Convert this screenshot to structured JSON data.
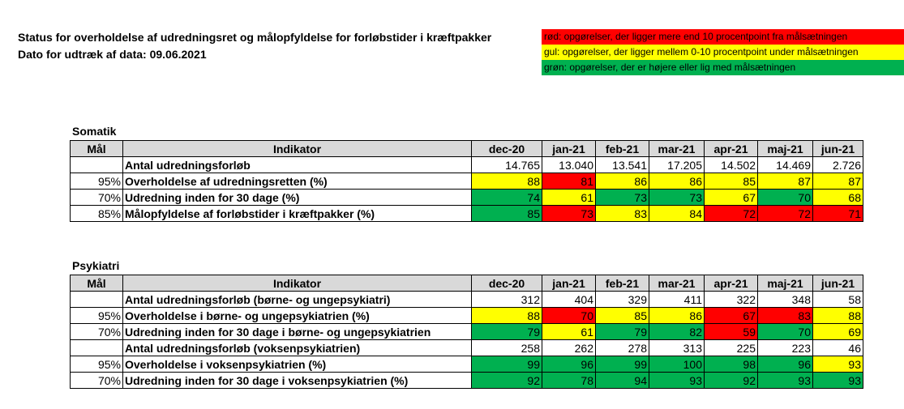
{
  "header": {
    "title": "Status for overholdelse af udredningsret og målopfyldelse for forløbstider i kræftpakker",
    "date_line": "Dato for udtræk af data: 09.06.2021"
  },
  "legend": [
    {
      "text": "rød: opgørelser, der ligger mere end 10 procentpoint fra målsætningen",
      "color": "#ff0000"
    },
    {
      "text": "gul: opgørelser, der ligger mellem 0-10 procentpoint under målsætningen",
      "color": "#ffff00"
    },
    {
      "text": "grøn: opgørelser, der er højere eller lig med målsætningen",
      "color": "#00b050"
    }
  ],
  "columns": {
    "goal": "Mål",
    "indicator": "Indikator",
    "months": [
      "dec-20",
      "jan-21",
      "feb-21",
      "mar-21",
      "apr-21",
      "maj-21",
      "jun-21"
    ]
  },
  "somatik": {
    "title": "Somatik",
    "rows": [
      {
        "goal": "",
        "indicator": "Antal udredningsforløb",
        "values": [
          "14.765",
          "13.040",
          "13.541",
          "17.205",
          "14.502",
          "14.469",
          "2.726"
        ],
        "colors": [
          "",
          "",
          "",
          "",
          "",
          "",
          ""
        ]
      },
      {
        "goal": "95%",
        "indicator": "Overholdelse af udredningsretten (%)",
        "values": [
          "88",
          "81",
          "86",
          "86",
          "85",
          "87",
          "87"
        ],
        "colors": [
          "yellow",
          "red",
          "yellow",
          "yellow",
          "yellow",
          "yellow",
          "yellow"
        ]
      },
      {
        "goal": "70%",
        "indicator": "Udredning inden for 30 dage (%)",
        "values": [
          "74",
          "61",
          "73",
          "73",
          "67",
          "70",
          "68"
        ],
        "colors": [
          "green",
          "yellow",
          "green",
          "green",
          "yellow",
          "green",
          "yellow"
        ]
      },
      {
        "goal": "85%",
        "indicator": "Målopfyldelse af forløbstider i kræftpakker (%)",
        "values": [
          "85",
          "73",
          "83",
          "84",
          "72",
          "72",
          "71"
        ],
        "colors": [
          "green",
          "red",
          "yellow",
          "yellow",
          "red",
          "red",
          "red"
        ]
      }
    ]
  },
  "psykiatri": {
    "title": "Psykiatri",
    "rows": [
      {
        "goal": "",
        "indicator": "Antal udredningsforløb (børne- og ungepsykiatri)",
        "values": [
          "312",
          "404",
          "329",
          "411",
          "322",
          "348",
          "58"
        ],
        "colors": [
          "",
          "",
          "",
          "",
          "",
          "",
          ""
        ]
      },
      {
        "goal": "95%",
        "indicator": "Overholdelse i børne- og ungepsykiatrien (%)",
        "values": [
          "88",
          "70",
          "85",
          "86",
          "67",
          "83",
          "88"
        ],
        "colors": [
          "yellow",
          "red",
          "yellow",
          "yellow",
          "red",
          "red",
          "yellow"
        ]
      },
      {
        "goal": "70%",
        "indicator": "Udredning inden for 30 dage i børne- og ungepsykiatrien",
        "values": [
          "79",
          "61",
          "79",
          "82",
          "59",
          "70",
          "69"
        ],
        "colors": [
          "green",
          "yellow",
          "green",
          "green",
          "red",
          "green",
          "yellow"
        ]
      },
      {
        "goal": "",
        "indicator": "Antal udredningsforløb (voksenpsykiatrien)",
        "values": [
          "258",
          "262",
          "278",
          "313",
          "225",
          "223",
          "46"
        ],
        "colors": [
          "",
          "",
          "",
          "",
          "",
          "",
          ""
        ]
      },
      {
        "goal": "95%",
        "indicator": "Overholdelse i voksenpsykiatrien (%)",
        "values": [
          "99",
          "96",
          "99",
          "100",
          "98",
          "96",
          "93"
        ],
        "colors": [
          "green",
          "green",
          "green",
          "green",
          "green",
          "green",
          "yellow"
        ]
      },
      {
        "goal": "70%",
        "indicator": "Udredning inden for 30 dage i voksenpsykiatrien (%)",
        "values": [
          "92",
          "78",
          "94",
          "93",
          "92",
          "93",
          "93"
        ],
        "colors": [
          "green",
          "green",
          "green",
          "green",
          "green",
          "green",
          "green"
        ]
      }
    ]
  }
}
